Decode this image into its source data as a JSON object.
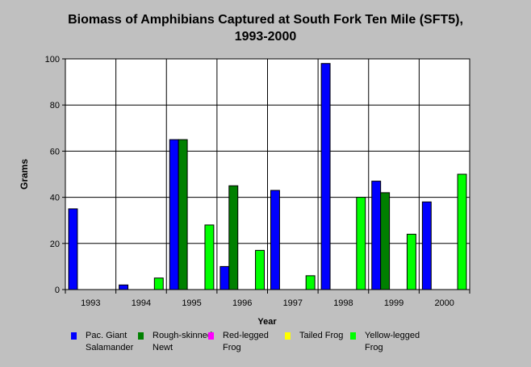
{
  "chart_data": {
    "type": "bar",
    "title": [
      "Biomass of Amphibians Captured at South Fork Ten Mile (SFT5),",
      "1993-2000"
    ],
    "xlabel": "Year",
    "ylabel": "Grams",
    "ylim": [
      0,
      100
    ],
    "yticks": [
      "0",
      "20",
      "40",
      "60",
      "80",
      "100"
    ],
    "grid": true,
    "legend_position": "bottom",
    "categories": [
      "1993",
      "1994",
      "1995",
      "1996",
      "1997",
      "1998",
      "1999",
      "2000"
    ],
    "series": [
      {
        "name": "Pac. Giant Salamander",
        "label_lines": [
          "Pac. Giant",
          "Salamander"
        ],
        "color": "#0000ff",
        "values": [
          35,
          2,
          65,
          10,
          43,
          98,
          47,
          38
        ]
      },
      {
        "name": "Rough-skinned Newt",
        "label_lines": [
          "Rough-skinned",
          "Newt"
        ],
        "color": "#008000",
        "values": [
          0,
          0,
          65,
          45,
          0,
          0,
          42,
          0
        ]
      },
      {
        "name": "Red-legged Frog",
        "label_lines": [
          "Red-legged",
          "Frog"
        ],
        "color": "#ff00ff",
        "values": [
          0,
          0,
          0,
          0,
          0,
          0,
          0,
          0
        ]
      },
      {
        "name": "Tailed Frog",
        "label_lines": [
          "Tailed Frog"
        ],
        "color": "#ffff00",
        "values": [
          0,
          0,
          0,
          0,
          0,
          0,
          0,
          0
        ]
      },
      {
        "name": "Yellow-legged Frog",
        "label_lines": [
          "Yellow-legged",
          "Frog"
        ],
        "color": "#00ff00",
        "values": [
          0,
          5,
          28,
          17,
          6,
          40,
          24,
          50
        ]
      }
    ]
  }
}
